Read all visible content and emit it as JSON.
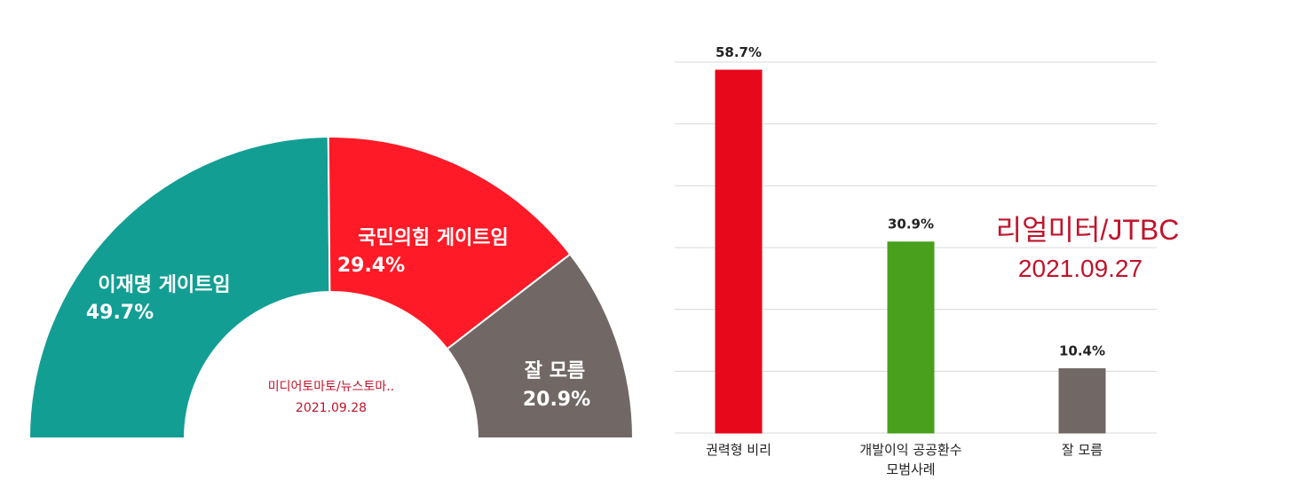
{
  "chart_data": [
    {
      "type": "pie",
      "variant": "half-donut",
      "categories": [
        "이재명 게이트임",
        "국민의힘 게이트임",
        "잘 모름"
      ],
      "values": [
        49.7,
        29.4,
        20.9
      ],
      "value_labels": [
        "49.7%",
        "29.4%",
        "20.9%"
      ],
      "colors": [
        "#139E94",
        "#FF1A27",
        "#716866"
      ],
      "source": "미디어토마토/뉴스토마..",
      "date": "2021.09.28",
      "source_color": "#C0142B"
    },
    {
      "type": "bar",
      "categories": [
        "권력형 비리",
        "개발이익 공공환수\n모범사례",
        "잘 모름"
      ],
      "values": [
        58.7,
        30.9,
        10.4
      ],
      "value_labels": [
        "58.7%",
        "30.9%",
        "10.4%"
      ],
      "colors": [
        "#E8081C",
        "#48A01C",
        "#716866"
      ],
      "ylim": [
        0,
        60
      ],
      "grid": true,
      "source": "리얼미터/JTBC",
      "date": "2021.09.27",
      "source_color": "#C0142B"
    }
  ]
}
